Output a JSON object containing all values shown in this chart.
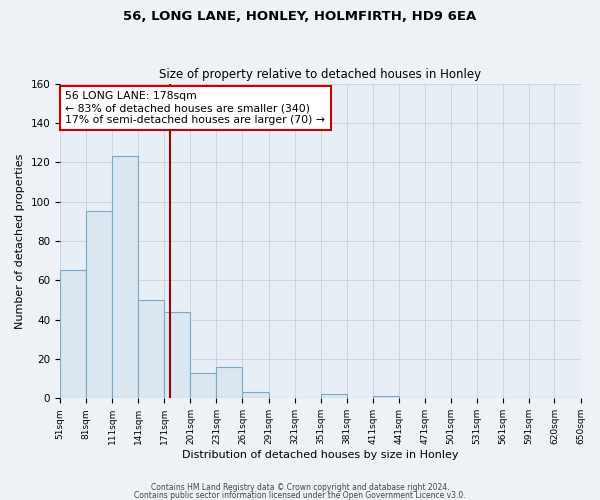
{
  "title": "56, LONG LANE, HONLEY, HOLMFIRTH, HD9 6EA",
  "subtitle": "Size of property relative to detached houses in Honley",
  "xlabel": "Distribution of detached houses by size in Honley",
  "ylabel": "Number of detached properties",
  "bins": [
    51,
    81,
    111,
    141,
    171,
    201,
    231,
    261,
    291,
    321,
    351,
    381,
    411,
    441,
    471,
    501,
    531,
    561,
    591,
    620,
    650
  ],
  "counts": [
    65,
    95,
    123,
    50,
    44,
    13,
    16,
    3,
    0,
    0,
    2,
    0,
    1,
    0,
    0,
    0,
    0,
    0,
    0,
    0
  ],
  "bar_color": "#dae6f0",
  "bar_edge_color": "#7aaac8",
  "vline_color": "#990000",
  "vline_x": 178,
  "annotation_line1": "56 LONG LANE: 178sqm",
  "annotation_line2": "← 83% of detached houses are smaller (340)",
  "annotation_line3": "17% of semi-detached houses are larger (70) →",
  "annotation_box_color": "#ffffff",
  "annotation_box_edge": "#cc0000",
  "ylim": [
    0,
    160
  ],
  "yticks": [
    0,
    20,
    40,
    60,
    80,
    100,
    120,
    140,
    160
  ],
  "xtick_labels": [
    "51sqm",
    "81sqm",
    "111sqm",
    "141sqm",
    "171sqm",
    "201sqm",
    "231sqm",
    "261sqm",
    "291sqm",
    "321sqm",
    "351sqm",
    "381sqm",
    "411sqm",
    "441sqm",
    "471sqm",
    "501sqm",
    "531sqm",
    "561sqm",
    "591sqm",
    "620sqm",
    "650sqm"
  ],
  "footer1": "Contains HM Land Registry data © Crown copyright and database right 2024.",
  "footer2": "Contains public sector information licensed under the Open Government Licence v3.0.",
  "background_color": "#eef2f7",
  "plot_bg_color": "#e8eef5",
  "grid_color": "#c8d0dc"
}
